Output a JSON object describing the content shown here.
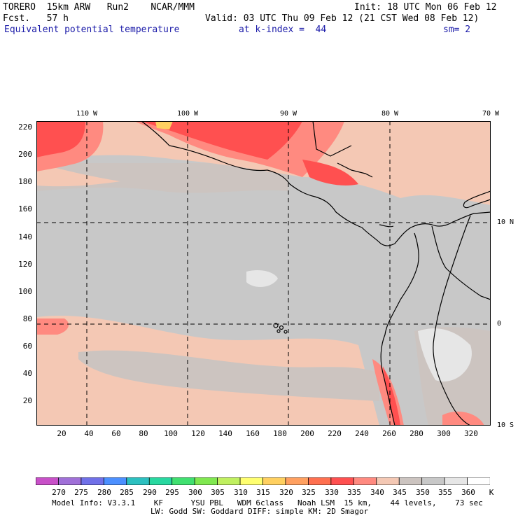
{
  "header": {
    "model": "TORERO  15km ARW   Run2    NCAR/MMM",
    "init": "Init: 18 UTC Mon 06 Feb 12",
    "fcst": "Fcst.   57 h",
    "valid": "Valid: 03 UTC Thu 09 Feb 12 (21 CST Wed 08 Feb 12)",
    "field": "Equivalent potential temperature",
    "kindex": "at k-index =  44",
    "sm": "sm= 2"
  },
  "longitude_labels": [
    "110 W",
    "100 W",
    "90 W",
    "80 W",
    "70 W"
  ],
  "latitude_labels": [
    "10 N",
    "0",
    "10 S"
  ],
  "y_ticks": [
    "220",
    "200",
    "180",
    "160",
    "140",
    "120",
    "100",
    "80",
    "60",
    "40",
    "20"
  ],
  "x_ticks": [
    "20",
    "40",
    "60",
    "80",
    "100",
    "120",
    "140",
    "160",
    "180",
    "200",
    "220",
    "240",
    "260",
    "280",
    "300",
    "320"
  ],
  "colorbar": {
    "labels": [
      "270",
      "275",
      "280",
      "285",
      "290",
      "295",
      "300",
      "305",
      "310",
      "315",
      "320",
      "325",
      "330",
      "335",
      "340",
      "345",
      "350",
      "355",
      "360"
    ],
    "unit": "K",
    "colors": [
      "#c850c8",
      "#a070d8",
      "#7070e8",
      "#4c90ff",
      "#2cc0c0",
      "#28d8a0",
      "#40e070",
      "#80e850",
      "#c0f060",
      "#ffff70",
      "#ffd060",
      "#ffa060",
      "#ff7050",
      "#ff5050",
      "#ff8a80",
      "#f4c8b4",
      "#ccc4c0",
      "#c8c8c8",
      "#e6e6e6",
      "#ffffff"
    ]
  },
  "palette": {
    "pale": "#f4c8b4",
    "gray": "#c8c8c8",
    "taupe": "#ccc4c0",
    "pink": "#ff8a80",
    "red": "#ff5050",
    "light": "#e6e6e6",
    "orange": "#ffd060"
  },
  "footer": {
    "line1": "Model Info: V3.3.1    KF      YSU PBL   WDM 6class   Noah LSM  15 km,    44 levels,    73 sec",
    "line2": "LW: Godd SW: Goddard DIFF: simple KM: 2D Smagor"
  }
}
